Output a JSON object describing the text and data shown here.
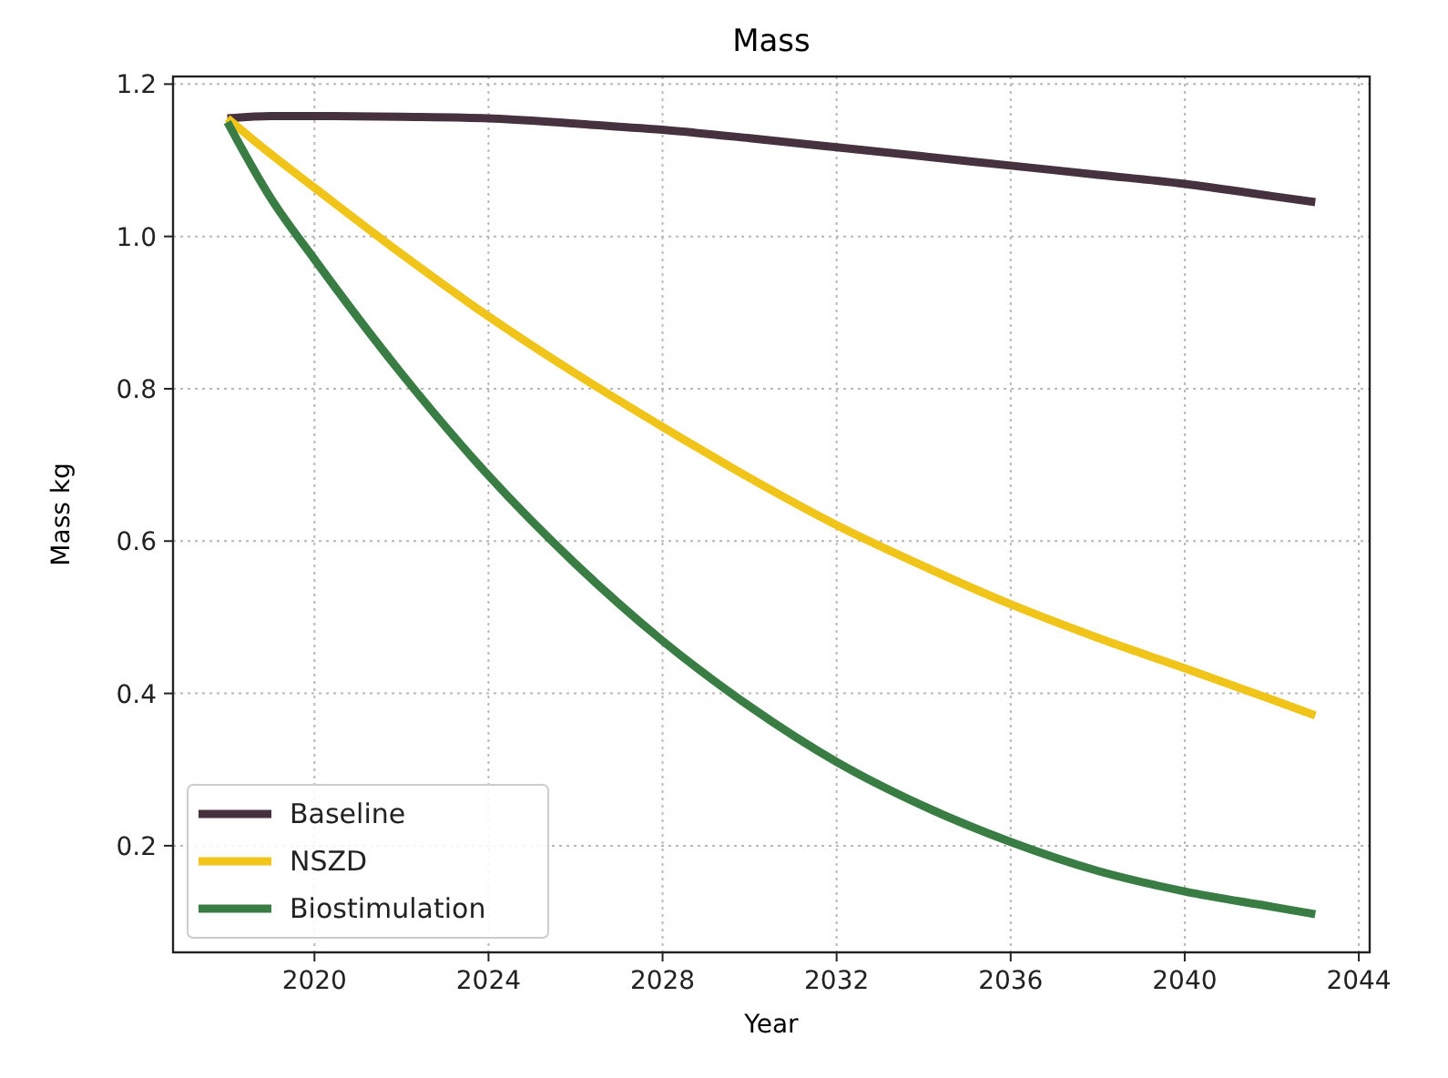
{
  "chart_data": {
    "type": "line",
    "title": "Mass",
    "xlabel": "Year",
    "ylabel": "Mass kg",
    "x": [
      2018,
      2019,
      2020,
      2022,
      2024,
      2026,
      2028,
      2030,
      2032,
      2034,
      2036,
      2038,
      2040,
      2042,
      2043
    ],
    "series": [
      {
        "name": "Baseline",
        "color": "#46323f",
        "values": [
          1.155,
          1.158,
          1.158,
          1.157,
          1.155,
          1.148,
          1.14,
          1.129,
          1.117,
          1.105,
          1.093,
          1.081,
          1.069,
          1.053,
          1.045
        ]
      },
      {
        "name": "NSZD",
        "color": "#f0c419",
        "values": [
          1.155,
          1.108,
          1.064,
          0.977,
          0.895,
          0.82,
          0.75,
          0.683,
          0.621,
          0.567,
          0.517,
          0.473,
          0.433,
          0.392,
          0.371
        ]
      },
      {
        "name": "Biostimulation",
        "color": "#3a7d44",
        "values": [
          1.15,
          1.05,
          0.97,
          0.82,
          0.686,
          0.57,
          0.469,
          0.383,
          0.31,
          0.252,
          0.205,
          0.167,
          0.14,
          0.12,
          0.11
        ]
      }
    ],
    "xlim": [
      2016.75,
      2044.25
    ],
    "xticks": [
      2020,
      2024,
      2028,
      2032,
      2036,
      2040,
      2044
    ],
    "ylim": [
      0.06,
      1.21
    ],
    "yticks": [
      {
        "value": 0.2,
        "label": "0.2"
      },
      {
        "value": 0.4,
        "label": "0.4"
      },
      {
        "value": 0.6,
        "label": "0.6"
      },
      {
        "value": 0.8,
        "label": "0.8"
      },
      {
        "value": 1.0,
        "label": "1.0"
      },
      {
        "value": 1.2,
        "label": "1.2"
      }
    ],
    "grid": true,
    "legend": "bottom left",
    "line_style": "solid",
    "marker": "none"
  }
}
